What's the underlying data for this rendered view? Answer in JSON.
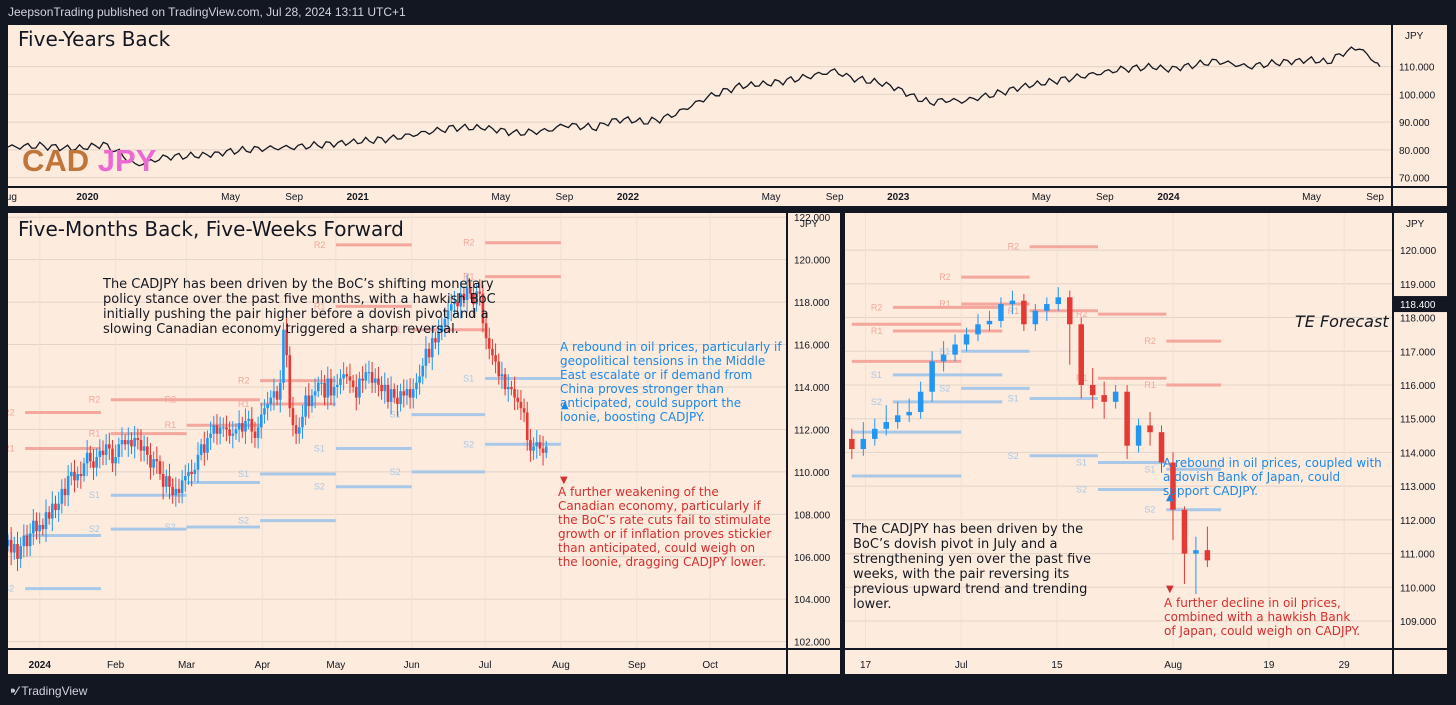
{
  "header": {
    "published": "JeepsonTrading published on TradingView.com, Jul 28, 2024 13:11 UTC+1"
  },
  "footer": {
    "brand": "TradingView"
  },
  "colors": {
    "bg": "#fdebdd",
    "up": "#2196f3",
    "down": "#e53935",
    "r_level": "#f4a79c",
    "s_level": "#a9c8e8",
    "line": "#131722",
    "cad": "#c0763a",
    "jpy": "#e96ad0",
    "blue_text": "#1e88e5",
    "red_text": "#d32f2f"
  },
  "chart_data": [
    {
      "id": "top",
      "type": "line",
      "title": "Five-Years Back",
      "symbol_base": "CAD",
      "symbol_quote": "JPY",
      "currency": "JPY",
      "ylim": [
        67,
        125
      ],
      "yticks": [
        "70.000",
        "80.000",
        "90.000",
        "100.000",
        "110.000"
      ],
      "ytick_values": [
        70,
        80,
        90,
        100,
        110
      ],
      "xticks": [
        "Aug",
        "2020",
        "May",
        "Sep",
        "2021",
        "May",
        "Sep",
        "2022",
        "May",
        "Sep",
        "2023",
        "May",
        "Sep",
        "2024",
        "May",
        "Sep"
      ],
      "xtick_t": [
        0,
        5,
        14,
        18,
        22,
        31,
        35,
        39,
        48,
        52,
        56,
        65,
        69,
        73,
        82,
        86
      ],
      "x_t_range": [
        0,
        87
      ],
      "series": [
        {
          "name": "CADJPY",
          "t": [
            0,
            2,
            4,
            5,
            6,
            7,
            8,
            9,
            10,
            12,
            13,
            14,
            16,
            18,
            20,
            22,
            24,
            26,
            28,
            30,
            32,
            34,
            35,
            36,
            37,
            38,
            39,
            40,
            41,
            42,
            44,
            46,
            48,
            50,
            52,
            53,
            54,
            55,
            56,
            57,
            58,
            59,
            60,
            62,
            64,
            66,
            68,
            70,
            72,
            73,
            74,
            76,
            78,
            80,
            82,
            83,
            84,
            85,
            85.5,
            86,
            86.3
          ],
          "values": [
            81,
            81.5,
            80.5,
            81,
            82,
            79,
            74.5,
            76,
            77.5,
            78,
            78.5,
            79.5,
            80.5,
            81,
            82,
            83,
            84,
            86,
            88,
            88,
            86,
            87,
            89,
            88.5,
            88,
            90.5,
            91,
            90,
            91,
            93,
            99,
            103,
            104,
            106,
            108.5,
            106,
            105,
            104,
            102,
            99,
            97,
            98,
            97.5,
            100,
            103,
            105,
            107,
            109,
            110,
            109,
            110,
            112,
            110,
            111.5,
            112.5,
            111.5,
            115,
            117,
            114,
            112,
            110
          ]
        }
      ]
    },
    {
      "id": "left",
      "type": "candlestick",
      "title": "Five-Months Back, Five-Weeks Forward",
      "currency": "JPY",
      "ylim": [
        101.7,
        122.2
      ],
      "yticks": [
        "102.000",
        "104.000",
        "106.000",
        "108.000",
        "110.000",
        "112.000",
        "114.000",
        "116.000",
        "118.000",
        "120.000",
        "122.000"
      ],
      "ytick_values": [
        102,
        104,
        106,
        108,
        110,
        112,
        114,
        116,
        118,
        120,
        122
      ],
      "xticks": [
        "2024",
        "Feb",
        "Mar",
        "Apr",
        "May",
        "Jun",
        "Jul",
        "Aug",
        "Sep",
        "Oct"
      ],
      "xtick_t": [
        0,
        31,
        60,
        91,
        121,
        152,
        182,
        213,
        244,
        274
      ],
      "x_t_range": [
        -13,
        305
      ],
      "closes": [
        106.8,
        106.2,
        106.6,
        105.9,
        106.5,
        107,
        106.5,
        107.1,
        107.7,
        107.2,
        107.5,
        107.3,
        108.1,
        107.8,
        108.5,
        108.2,
        108.5,
        109.2,
        108.9,
        109.8,
        110,
        109.6,
        109.9,
        109.8,
        110.4,
        110.9,
        110.5,
        110.2,
        110.7,
        111,
        110.8,
        111.3,
        111.1,
        110.4,
        110.7,
        111.3,
        111.5,
        111.3,
        111.5,
        111.2,
        111.6,
        111.5,
        111,
        111.2,
        110.8,
        110.2,
        110.6,
        110.5,
        109.9,
        109.3,
        109.8,
        109.3,
        108.9,
        109.2,
        109,
        109.6,
        109.8,
        110,
        109.9,
        110.1,
        110.8,
        111.3,
        110.9,
        111.6,
        111.8,
        112.2,
        111.8,
        112.1,
        112.1,
        112,
        111.7,
        111.8,
        112,
        112.3,
        111.9,
        112.4,
        112.5,
        111.9,
        111.6,
        112.1,
        112.7,
        113,
        113.2,
        113.5,
        113.8,
        113.4,
        114.2,
        116.7,
        115.5,
        113,
        112.2,
        111.8,
        112.1,
        112.6,
        113.6,
        113.1,
        113.6,
        113.8,
        114.2,
        114.2,
        113.5,
        114.4,
        113.6,
        114,
        114.1,
        114.4,
        114.6,
        114.5,
        114.3,
        114,
        113.5,
        114.4,
        114.3,
        114.7,
        114.7,
        114.2,
        114.4,
        114.1,
        113.8,
        114.1,
        113.3,
        113.9,
        113.5,
        113.2,
        113.8,
        113.6,
        113.9,
        113.5,
        113.9,
        114.2,
        114.5,
        115,
        115.8,
        115.4,
        116.3,
        116.1,
        116.6,
        116.9,
        117.2,
        117.6,
        117.9,
        118,
        117.8,
        118.4,
        118.1,
        118.7,
        118.4,
        117.9,
        118.5,
        118.4,
        117,
        116.3,
        115.8,
        115.5,
        115.2,
        114.5,
        114.6,
        113.9,
        114,
        113.9,
        113.5,
        113.3,
        113,
        112.8,
        111.5,
        111,
        111.2,
        111.4,
        111.1,
        110.9,
        111.2
      ],
      "markers": {
        "s1_label": "S1",
        "s2_label": "S2",
        "r1_label": "R1",
        "r2_label": "R2"
      },
      "levels": [
        {
          "label": "R2",
          "kind": "R",
          "t0": -6,
          "t1": 25,
          "price": 112.8
        },
        {
          "label": "R1",
          "kind": "R",
          "t0": -6,
          "t1": 25,
          "price": 111.1
        },
        {
          "label": "S1",
          "kind": "S",
          "t0": -6,
          "t1": 25,
          "price": 107
        },
        {
          "label": "S2",
          "kind": "S",
          "t0": -6,
          "t1": 25,
          "price": 104.5
        },
        {
          "label": "R2",
          "kind": "R",
          "t0": 29,
          "t1": 60,
          "price": 113.4
        },
        {
          "label": "R1",
          "kind": "R",
          "t0": 29,
          "t1": 60,
          "price": 111.8
        },
        {
          "label": "S1",
          "kind": "S",
          "t0": 29,
          "t1": 60,
          "price": 108.9
        },
        {
          "label": "S2",
          "kind": "S",
          "t0": 29,
          "t1": 60,
          "price": 107.3
        },
        {
          "label": "R2",
          "kind": "R",
          "t0": 60,
          "t1": 90,
          "price": 113.4
        },
        {
          "label": "R1",
          "kind": "R",
          "t0": 60,
          "t1": 90,
          "price": 112.2
        },
        {
          "label": "S1",
          "kind": "S",
          "t0": 60,
          "t1": 90,
          "price": 109.5
        },
        {
          "label": "S2",
          "kind": "S",
          "t0": 60,
          "t1": 90,
          "price": 107.4
        },
        {
          "label": "R2",
          "kind": "R",
          "t0": 90,
          "t1": 121,
          "price": 114.3
        },
        {
          "label": "R1",
          "kind": "R",
          "t0": 90,
          "t1": 121,
          "price": 113.2
        },
        {
          "label": "S1",
          "kind": "S",
          "t0": 90,
          "t1": 121,
          "price": 109.9
        },
        {
          "label": "S2",
          "kind": "S",
          "t0": 90,
          "t1": 121,
          "price": 107.7
        },
        {
          "label": "R2",
          "kind": "R",
          "t0": 121,
          "t1": 152,
          "price": 120.7
        },
        {
          "label": "R1",
          "kind": "R",
          "t0": 121,
          "t1": 152,
          "price": 117.8
        },
        {
          "label": "S1",
          "kind": "S",
          "t0": 121,
          "t1": 152,
          "price": 111.1
        },
        {
          "label": "S2",
          "kind": "S",
          "t0": 121,
          "t1": 152,
          "price": 109.3
        },
        {
          "label": "R2",
          "kind": "R",
          "t0": 182,
          "t1": 213,
          "price": 120.8
        },
        {
          "label": "R1",
          "kind": "R",
          "t0": 182,
          "t1": 213,
          "price": 119.2
        },
        {
          "label": "S1",
          "kind": "S",
          "t0": 182,
          "t1": 213,
          "price": 114.4
        },
        {
          "label": "S2",
          "kind": "S",
          "t0": 182,
          "t1": 213,
          "price": 111.3
        },
        {
          "label": "R1",
          "kind": "R",
          "t0": 152,
          "t1": 182,
          "price": 116.7
        },
        {
          "label": "S1",
          "kind": "S",
          "t0": 152,
          "t1": 182,
          "price": 112.7
        },
        {
          "label": "S2",
          "kind": "S",
          "t0": 152,
          "t1": 182,
          "price": 110
        }
      ]
    },
    {
      "id": "right",
      "type": "candlestick",
      "currency": "JPY",
      "price_tag": "118.400",
      "forecast_label": "TE Forecast",
      "ylim": [
        108.2,
        121.1
      ],
      "yticks": [
        "109.000",
        "110.000",
        "111.000",
        "112.000",
        "113.000",
        "114.000",
        "115.000",
        "116.000",
        "117.000",
        "118.000",
        "119.000",
        "120.000"
      ],
      "ytick_values": [
        109,
        110,
        111,
        112,
        113,
        114,
        115,
        116,
        117,
        118,
        119,
        120
      ],
      "xticks": [
        "17",
        "Jul",
        "15",
        "Aug",
        "19",
        "29"
      ],
      "xtick_t": [
        0,
        14,
        28,
        45,
        59,
        70
      ],
      "x_t_range": [
        -3,
        77
      ],
      "candles": [
        [
          114.4,
          114.1,
          114.7,
          113.8
        ],
        [
          114.1,
          114.4,
          114.9,
          113.9
        ],
        [
          114.4,
          114.7,
          115,
          114.2
        ],
        [
          114.7,
          114.9,
          115.4,
          114.5
        ],
        [
          114.9,
          115.1,
          115.5,
          114.7
        ],
        [
          115.1,
          115.2,
          115.6,
          114.9
        ],
        [
          115.2,
          115.8,
          116.1,
          115
        ],
        [
          115.8,
          116.7,
          117,
          115.5
        ],
        [
          116.7,
          116.9,
          117.3,
          116.4
        ],
        [
          116.9,
          117.2,
          117.5,
          116.7
        ],
        [
          117.2,
          117.5,
          117.7,
          117
        ],
        [
          117.5,
          117.8,
          118.1,
          117.3
        ],
        [
          117.8,
          117.9,
          118.2,
          117.6
        ],
        [
          117.9,
          118.4,
          118.6,
          117.7
        ],
        [
          118.4,
          118.5,
          118.8,
          118.1
        ],
        [
          118.5,
          117.8,
          118.7,
          117.6
        ],
        [
          117.8,
          118.2,
          118.4,
          117.6
        ],
        [
          118.2,
          118.4,
          118.6,
          117.9
        ],
        [
          118.4,
          118.6,
          118.9,
          118.2
        ],
        [
          118.6,
          117.8,
          118.8,
          116.6
        ],
        [
          117.8,
          116,
          118,
          115.6
        ],
        [
          116,
          115.7,
          116.5,
          115.3
        ],
        [
          115.7,
          115.5,
          116.1,
          115
        ],
        [
          115.5,
          115.8,
          116,
          115.3
        ],
        [
          115.8,
          114.2,
          116,
          113.8
        ],
        [
          114.2,
          114.8,
          115,
          114
        ],
        [
          114.8,
          114.6,
          115.2,
          114.2
        ],
        [
          114.6,
          113.7,
          114.8,
          113.4
        ],
        [
          113.7,
          112.3,
          114,
          111.4
        ],
        [
          112.3,
          111,
          112.4,
          110.1
        ],
        [
          111,
          111.1,
          111.5,
          109.8
        ],
        [
          111.1,
          110.8,
          111.8,
          110.6
        ]
      ],
      "levels": [
        {
          "label": "R2",
          "kind": "R",
          "t0": -2,
          "t1": 14,
          "price": 117.8
        },
        {
          "label": "R1",
          "kind": "R",
          "t0": -2,
          "t1": 14,
          "price": 116.7
        },
        {
          "label": "S1",
          "kind": "S",
          "t0": -2,
          "t1": 14,
          "price": 114.6
        },
        {
          "label": "S2",
          "kind": "S",
          "t0": -2,
          "t1": 14,
          "price": 113.3
        },
        {
          "label": "R2",
          "kind": "R",
          "t0": 4,
          "t1": 20,
          "price": 118.3
        },
        {
          "label": "R1",
          "kind": "R",
          "t0": 4,
          "t1": 20,
          "price": 117.6
        },
        {
          "label": "S1",
          "kind": "S",
          "t0": 4,
          "t1": 20,
          "price": 116.3
        },
        {
          "label": "S2",
          "kind": "S",
          "t0": 4,
          "t1": 20,
          "price": 115.5
        },
        {
          "label": "R2",
          "kind": "R",
          "t0": 14,
          "t1": 24,
          "price": 119.2
        },
        {
          "label": "R1",
          "kind": "R",
          "t0": 14,
          "t1": 24,
          "price": 118.4
        },
        {
          "label": "S1",
          "kind": "S",
          "t0": 14,
          "t1": 24,
          "price": 117
        },
        {
          "label": "S2",
          "kind": "S",
          "t0": 14,
          "t1": 24,
          "price": 115.9
        },
        {
          "label": "R2",
          "kind": "R",
          "t0": 24,
          "t1": 34,
          "price": 120.1
        },
        {
          "label": "R1",
          "kind": "R",
          "t0": 24,
          "t1": 34,
          "price": 118.2
        },
        {
          "label": "S1",
          "kind": "S",
          "t0": 24,
          "t1": 34,
          "price": 115.6
        },
        {
          "label": "S2",
          "kind": "S",
          "t0": 24,
          "t1": 34,
          "price": 113.9
        },
        {
          "label": "R2",
          "kind": "R",
          "t0": 34,
          "t1": 44,
          "price": 118.1
        },
        {
          "label": "R1",
          "kind": "R",
          "t0": 34,
          "t1": 44,
          "price": 116.2
        },
        {
          "label": "S1",
          "kind": "S",
          "t0": 34,
          "t1": 44,
          "price": 113.7
        },
        {
          "label": "S2",
          "kind": "S",
          "t0": 34,
          "t1": 44,
          "price": 112.9
        },
        {
          "label": "R2",
          "kind": "R",
          "t0": 44,
          "t1": 52,
          "price": 117.3
        },
        {
          "label": "R1",
          "kind": "R",
          "t0": 44,
          "t1": 52,
          "price": 116
        },
        {
          "label": "S1",
          "kind": "S",
          "t0": 44,
          "t1": 52,
          "price": 113.5
        },
        {
          "label": "S2",
          "kind": "S",
          "t0": 44,
          "t1": 52,
          "price": 112.3
        }
      ]
    }
  ],
  "annotations": {
    "left_summary": "The CADJPY has been driven by the BoC’s shifting monetary policy stance over the past five months, with a hawkish BoC initially pushing the pair higher before a dovish pivot and a slowing Canadian economy triggered a sharp reversal.",
    "left_bull": "A rebound in oil prices, particularly if geopolitical tensions in the Middle East escalate or if demand from China proves stronger than anticipated, could support the loonie, boosting CADJPY.",
    "left_bear": "A further weakening of the Canadian economy, particularly if the BoC’s rate cuts fail to stimulate growth or if inflation proves stickier than anticipated, could weigh on the loonie, dragging CADJPY lower.",
    "right_summary": "The CADJPY has been driven by the BoC’s dovish pivot in July and a strengthening yen over the past five weeks, with the pair reversing its previous upward trend and trending lower.",
    "right_bull": "A rebound in oil prices, coupled with a dovish Bank of Japan, could support CADJPY.",
    "right_bear": "A further decline in oil prices, combined with a hawkish Bank of Japan, could weigh on CADJPY.",
    "up_arrow": "▲",
    "down_arrow": "▼"
  }
}
